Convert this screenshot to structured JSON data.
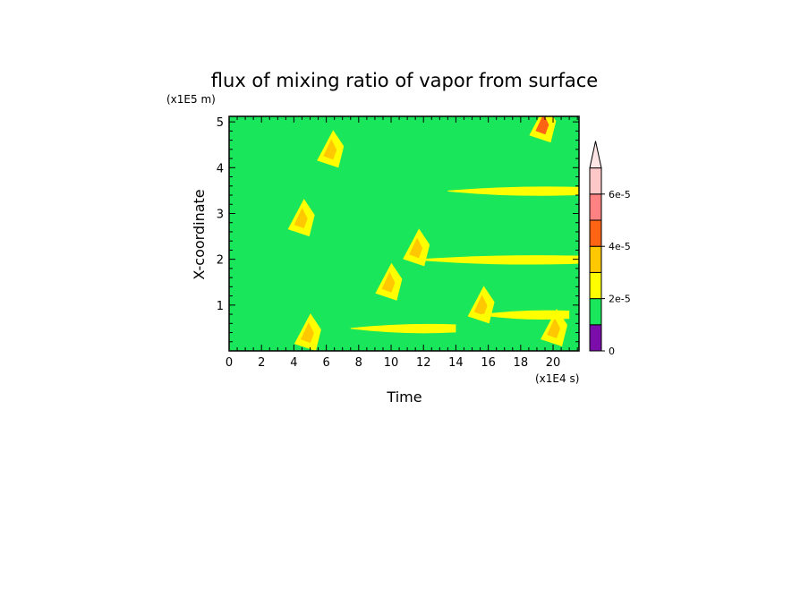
{
  "chart_data": {
    "type": "heatmap",
    "title": "flux of mixing ratio of vapor from surface",
    "xlabel": "Time",
    "ylabel": "X-coordinate",
    "x_unit": "(x1E4 s)",
    "y_unit": "(x1E5 m)",
    "xlim": [
      0,
      21.6
    ],
    "ylim": [
      0,
      5.12
    ],
    "x_ticks": [
      "0",
      "2",
      "4",
      "6",
      "8",
      "10",
      "12",
      "14",
      "16",
      "18",
      "20"
    ],
    "y_ticks": [
      "1",
      "2",
      "3",
      "4",
      "5"
    ],
    "colorbar": {
      "levels": [
        0,
        1e-05,
        2e-05,
        3e-05,
        4e-05,
        5e-05,
        6e-05,
        7e-05
      ],
      "tick_labels": [
        "0",
        "2e-5",
        "4e-5",
        "6e-5"
      ],
      "colors": [
        "#7b0eab",
        "#19e65a",
        "#ffff00",
        "#ffc800",
        "#ff6414",
        "#ff8282",
        "#ffc8c8",
        "#ffe6e6"
      ],
      "extend": "max"
    },
    "background_color": "#19e65a",
    "features": [
      {
        "kind": "hotspot",
        "t": 4.4,
        "x": 2.85,
        "level": 3
      },
      {
        "kind": "hotspot",
        "t": 4.8,
        "x": 0.35,
        "level": 3
      },
      {
        "kind": "hotspot",
        "t": 6.2,
        "x": 4.35,
        "level": 3
      },
      {
        "kind": "hotspot",
        "t": 9.8,
        "x": 1.45,
        "level": 3
      },
      {
        "kind": "hotspot",
        "t": 11.5,
        "x": 2.2,
        "level": 3
      },
      {
        "kind": "hotspot",
        "t": 15.5,
        "x": 0.95,
        "level": 3
      },
      {
        "kind": "hotspot",
        "t": 19.3,
        "x": 4.9,
        "level": 4
      },
      {
        "kind": "hotspot",
        "t": 20.0,
        "x": 0.45,
        "level": 3
      },
      {
        "kind": "band",
        "t0": 13.5,
        "t1": 21.6,
        "x": 3.5,
        "level": 2
      },
      {
        "kind": "band",
        "t0": 11.5,
        "t1": 21.6,
        "x": 2.0,
        "level": 2
      },
      {
        "kind": "band",
        "t0": 7.5,
        "t1": 14.0,
        "x": 0.5,
        "level": 2
      },
      {
        "kind": "band",
        "t0": 15.5,
        "t1": 21.0,
        "x": 0.8,
        "level": 2
      }
    ]
  }
}
